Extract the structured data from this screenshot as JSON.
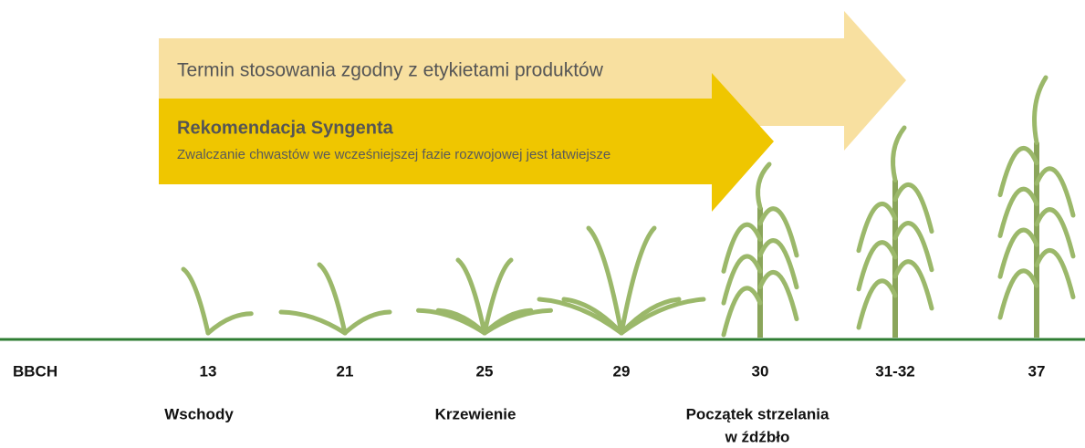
{
  "arrows": {
    "label_range": "Termin stosowania zgodny z etykietami produktów",
    "recommendation": {
      "title": "Rekomendacja Syngenta",
      "subtitle": "Zwalczanie chwastów we wcześniejszej fazie rozwojowej jest łatwiejsze"
    }
  },
  "bbch": {
    "label": "BBCH",
    "stages": [
      "13",
      "21",
      "25",
      "29",
      "30",
      "31-32",
      "37"
    ]
  },
  "phases": [
    {
      "lines": [
        "Wschody"
      ]
    },
    {
      "lines": [
        "Krzewienie"
      ]
    },
    {
      "lines": [
        "Początek strzelania",
        "w źdźbło"
      ]
    }
  ]
}
